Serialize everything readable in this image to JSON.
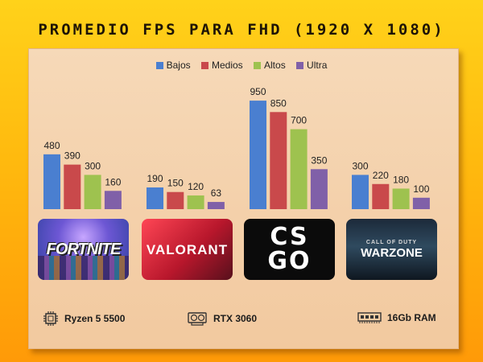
{
  "title": "PROMEDIO FPS PARA FHD (1920 X 1080)",
  "colors": {
    "background": "#ffb90e",
    "panel": "#f4d1ad"
  },
  "chart_data": {
    "type": "bar",
    "categories": [
      "Fortnite",
      "Valorant",
      "CS:GO",
      "Warzone"
    ],
    "series": [
      {
        "name": "Bajos",
        "color": "#4a7fd0",
        "values": [
          480,
          190,
          950,
          300
        ]
      },
      {
        "name": "Medios",
        "color": "#c9494b",
        "values": [
          390,
          150,
          850,
          220
        ]
      },
      {
        "name": "Altos",
        "color": "#9ec24f",
        "values": [
          300,
          120,
          700,
          180
        ]
      },
      {
        "name": "Ultra",
        "color": "#8060a8",
        "values": [
          160,
          63,
          350,
          100
        ]
      }
    ],
    "title": "PROMEDIO FPS PARA FHD (1920 X 1080)",
    "xlabel": "",
    "ylabel": "",
    "ylim": [
      0,
      1000
    ],
    "grid": false,
    "legend": "top-center",
    "data_labels": true
  },
  "games": [
    {
      "name": "FORTNITE",
      "icon": "fortnite-logo"
    },
    {
      "name": "VALORANT",
      "icon": "valorant-logo"
    },
    {
      "name": "CS GO",
      "icon": "csgo-logo"
    },
    {
      "name": "WARZONE",
      "sub": "CALL OF DUTY",
      "icon": "warzone-logo"
    }
  ],
  "specs": {
    "cpu": {
      "label": "Ryzen 5 5500",
      "icon": "cpu-chip-icon"
    },
    "gpu": {
      "label": "RTX 3060",
      "icon": "graphics-card-icon"
    },
    "ram": {
      "label": "16Gb RAM",
      "icon": "ram-module-icon"
    }
  }
}
